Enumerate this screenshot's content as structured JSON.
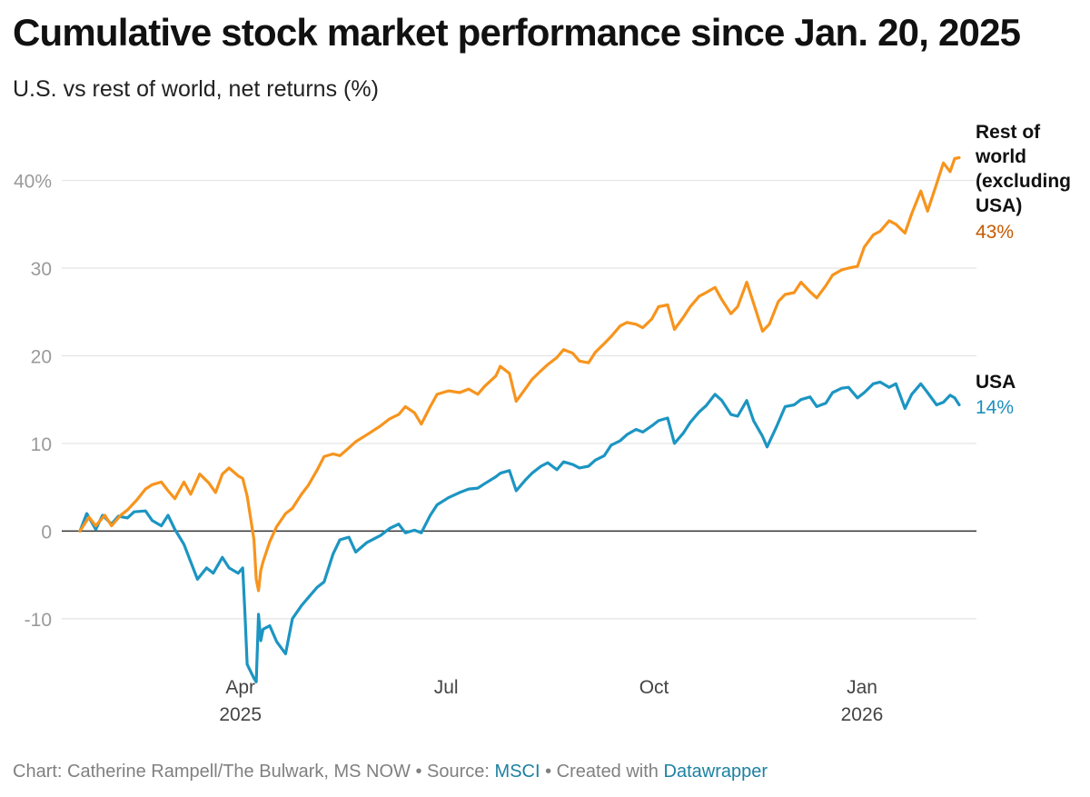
{
  "title": "Cumulative stock market performance since Jan. 20, 2025",
  "subtitle": "U.S. vs rest of world, net returns (%)",
  "footer": {
    "credit": "Chart: Catherine Rampell/The Bulwark, MS NOW",
    "sep1": " • ",
    "source_label": "Source: ",
    "source": "MSCI",
    "sep2": " • ",
    "created_label": "Created with ",
    "tool": "Datawrapper"
  },
  "colors": {
    "row": "#f7941d",
    "usa": "#1c95c2",
    "row_label": "#c45a00",
    "usa_label": "#1c8fbb",
    "link": "#1d81a2",
    "grid": "#e3e3e3",
    "tick": "#9a9a9a",
    "zero": "#333333"
  },
  "chart_data": {
    "type": "line",
    "title": "Cumulative stock market performance since Jan. 20, 2025",
    "subtitle": "U.S. vs rest of world, net returns (%)",
    "x_type": "date",
    "xlim": [
      "2025-01-20",
      "2026-02-13"
    ],
    "ylim": [
      -18,
      44
    ],
    "y_ticks": [
      {
        "value": 40,
        "label": "40%"
      },
      {
        "value": 30,
        "label": "30"
      },
      {
        "value": 20,
        "label": "20"
      },
      {
        "value": 10,
        "label": "10"
      },
      {
        "value": 0,
        "label": "0"
      },
      {
        "value": -10,
        "label": "-10"
      }
    ],
    "x_ticks": [
      {
        "date": "2025-04-01",
        "label": "Apr",
        "sublabel": "2025"
      },
      {
        "date": "2025-07-01",
        "label": "Jul",
        "sublabel": ""
      },
      {
        "date": "2025-10-01",
        "label": "Oct",
        "sublabel": ""
      },
      {
        "date": "2026-01-01",
        "label": "Jan",
        "sublabel": "2026"
      }
    ],
    "grid": "horizontal",
    "legend": "direct labels at line ends (right)",
    "series": [
      {
        "name": "Rest of world (excluding USA)",
        "label_lines": [
          "Rest of",
          "world",
          "(excluding",
          "USA)"
        ],
        "end_label": "43%",
        "color": "#f7941d",
        "points": [
          [
            "2025-01-20",
            0
          ],
          [
            "2025-01-24",
            1.6
          ],
          [
            "2025-01-27",
            0.6
          ],
          [
            "2025-01-31",
            1.8
          ],
          [
            "2025-02-03",
            0.6
          ],
          [
            "2025-02-07",
            1.8
          ],
          [
            "2025-02-10",
            2.4
          ],
          [
            "2025-02-14",
            3.5
          ],
          [
            "2025-02-18",
            4.8
          ],
          [
            "2025-02-21",
            5.3
          ],
          [
            "2025-02-25",
            5.6
          ],
          [
            "2025-02-28",
            4.6
          ],
          [
            "2025-03-03",
            3.7
          ],
          [
            "2025-03-07",
            5.6
          ],
          [
            "2025-03-10",
            4.2
          ],
          [
            "2025-03-14",
            6.5
          ],
          [
            "2025-03-18",
            5.5
          ],
          [
            "2025-03-21",
            4.4
          ],
          [
            "2025-03-24",
            6.5
          ],
          [
            "2025-03-27",
            7.2
          ],
          [
            "2025-03-31",
            6.3
          ],
          [
            "2025-04-02",
            6.0
          ],
          [
            "2025-04-04",
            4.0
          ],
          [
            "2025-04-07",
            -1.0
          ],
          [
            "2025-04-08",
            -5.5
          ],
          [
            "2025-04-09",
            -6.8
          ],
          [
            "2025-04-10",
            -4.5
          ],
          [
            "2025-04-11",
            -3.5
          ],
          [
            "2025-04-14",
            -1.2
          ],
          [
            "2025-04-17",
            0.5
          ],
          [
            "2025-04-21",
            2.0
          ],
          [
            "2025-04-24",
            2.6
          ],
          [
            "2025-04-28",
            4.2
          ],
          [
            "2025-05-01",
            5.2
          ],
          [
            "2025-05-05",
            7.0
          ],
          [
            "2025-05-08",
            8.5
          ],
          [
            "2025-05-12",
            8.8
          ],
          [
            "2025-05-15",
            8.6
          ],
          [
            "2025-05-19",
            9.5
          ],
          [
            "2025-05-22",
            10.2
          ],
          [
            "2025-05-27",
            11.0
          ],
          [
            "2025-06-02",
            12.0
          ],
          [
            "2025-06-06",
            12.8
          ],
          [
            "2025-06-10",
            13.3
          ],
          [
            "2025-06-13",
            14.2
          ],
          [
            "2025-06-17",
            13.5
          ],
          [
            "2025-06-20",
            12.2
          ],
          [
            "2025-06-24",
            14.2
          ],
          [
            "2025-06-27",
            15.6
          ],
          [
            "2025-07-02",
            16.0
          ],
          [
            "2025-07-07",
            15.8
          ],
          [
            "2025-07-11",
            16.2
          ],
          [
            "2025-07-15",
            15.6
          ],
          [
            "2025-07-18",
            16.5
          ],
          [
            "2025-07-23",
            17.7
          ],
          [
            "2025-07-25",
            18.8
          ],
          [
            "2025-07-29",
            18.0
          ],
          [
            "2025-08-01",
            14.8
          ],
          [
            "2025-08-05",
            16.2
          ],
          [
            "2025-08-08",
            17.3
          ],
          [
            "2025-08-12",
            18.3
          ],
          [
            "2025-08-15",
            19.0
          ],
          [
            "2025-08-19",
            19.8
          ],
          [
            "2025-08-22",
            20.7
          ],
          [
            "2025-08-26",
            20.3
          ],
          [
            "2025-08-29",
            19.4
          ],
          [
            "2025-09-02",
            19.2
          ],
          [
            "2025-09-05",
            20.4
          ],
          [
            "2025-09-09",
            21.4
          ],
          [
            "2025-09-12",
            22.2
          ],
          [
            "2025-09-16",
            23.4
          ],
          [
            "2025-09-19",
            23.8
          ],
          [
            "2025-09-23",
            23.6
          ],
          [
            "2025-09-26",
            23.2
          ],
          [
            "2025-09-30",
            24.2
          ],
          [
            "2025-10-03",
            25.6
          ],
          [
            "2025-10-07",
            25.8
          ],
          [
            "2025-10-10",
            23.0
          ],
          [
            "2025-10-14",
            24.4
          ],
          [
            "2025-10-17",
            25.6
          ],
          [
            "2025-10-21",
            26.8
          ],
          [
            "2025-10-24",
            27.2
          ],
          [
            "2025-10-28",
            27.8
          ],
          [
            "2025-10-31",
            26.4
          ],
          [
            "2025-11-04",
            24.8
          ],
          [
            "2025-11-07",
            25.6
          ],
          [
            "2025-11-11",
            28.4
          ],
          [
            "2025-11-14",
            26.0
          ],
          [
            "2025-11-18",
            22.8
          ],
          [
            "2025-11-21",
            23.6
          ],
          [
            "2025-11-25",
            26.2
          ],
          [
            "2025-11-28",
            27.0
          ],
          [
            "2025-12-02",
            27.2
          ],
          [
            "2025-12-05",
            28.4
          ],
          [
            "2025-12-09",
            27.3
          ],
          [
            "2025-12-12",
            26.6
          ],
          [
            "2025-12-16",
            28.0
          ],
          [
            "2025-12-19",
            29.2
          ],
          [
            "2025-12-23",
            29.8
          ],
          [
            "2025-12-26",
            30.0
          ],
          [
            "2025-12-30",
            30.2
          ],
          [
            "2026-01-02",
            32.4
          ],
          [
            "2026-01-06",
            33.8
          ],
          [
            "2026-01-09",
            34.2
          ],
          [
            "2026-01-13",
            35.4
          ],
          [
            "2026-01-16",
            35.0
          ],
          [
            "2026-01-20",
            34.0
          ],
          [
            "2026-01-23",
            36.2
          ],
          [
            "2026-01-27",
            38.8
          ],
          [
            "2026-01-30",
            36.5
          ],
          [
            "2026-02-03",
            39.6
          ],
          [
            "2026-02-06",
            42.0
          ],
          [
            "2026-02-09",
            41.0
          ],
          [
            "2026-02-11",
            42.5
          ],
          [
            "2026-02-13",
            42.6
          ]
        ]
      },
      {
        "name": "USA",
        "label_lines": [
          "USA"
        ],
        "end_label": "14%",
        "color": "#1c95c2",
        "points": [
          [
            "2025-01-20",
            0
          ],
          [
            "2025-01-23",
            2.0
          ],
          [
            "2025-01-27",
            0.2
          ],
          [
            "2025-01-30",
            1.8
          ],
          [
            "2025-02-03",
            0.8
          ],
          [
            "2025-02-06",
            1.7
          ],
          [
            "2025-02-10",
            1.5
          ],
          [
            "2025-02-13",
            2.2
          ],
          [
            "2025-02-18",
            2.3
          ],
          [
            "2025-02-21",
            1.2
          ],
          [
            "2025-02-25",
            0.6
          ],
          [
            "2025-02-28",
            1.8
          ],
          [
            "2025-03-03",
            0.2
          ],
          [
            "2025-03-07",
            -1.5
          ],
          [
            "2025-03-10",
            -3.5
          ],
          [
            "2025-03-13",
            -5.5
          ],
          [
            "2025-03-17",
            -4.2
          ],
          [
            "2025-03-20",
            -4.8
          ],
          [
            "2025-03-24",
            -3.0
          ],
          [
            "2025-03-27",
            -4.2
          ],
          [
            "2025-03-31",
            -4.8
          ],
          [
            "2025-04-02",
            -4.2
          ],
          [
            "2025-04-03",
            -9.5
          ],
          [
            "2025-04-04",
            -15.2
          ],
          [
            "2025-04-07",
            -16.8
          ],
          [
            "2025-04-08",
            -17.2
          ],
          [
            "2025-04-09",
            -9.5
          ],
          [
            "2025-04-10",
            -12.5
          ],
          [
            "2025-04-11",
            -11.2
          ],
          [
            "2025-04-14",
            -10.8
          ],
          [
            "2025-04-17",
            -12.6
          ],
          [
            "2025-04-21",
            -14.0
          ],
          [
            "2025-04-24",
            -10.0
          ],
          [
            "2025-04-28",
            -8.5
          ],
          [
            "2025-05-01",
            -7.6
          ],
          [
            "2025-05-05",
            -6.4
          ],
          [
            "2025-05-08",
            -5.8
          ],
          [
            "2025-05-12",
            -2.6
          ],
          [
            "2025-05-15",
            -1.0
          ],
          [
            "2025-05-19",
            -0.7
          ],
          [
            "2025-05-22",
            -2.4
          ],
          [
            "2025-05-27",
            -1.3
          ],
          [
            "2025-06-02",
            -0.5
          ],
          [
            "2025-06-06",
            0.3
          ],
          [
            "2025-06-10",
            0.8
          ],
          [
            "2025-06-13",
            -0.2
          ],
          [
            "2025-06-17",
            0.1
          ],
          [
            "2025-06-20",
            -0.2
          ],
          [
            "2025-06-24",
            1.8
          ],
          [
            "2025-06-27",
            3.0
          ],
          [
            "2025-07-02",
            3.8
          ],
          [
            "2025-07-07",
            4.4
          ],
          [
            "2025-07-11",
            4.8
          ],
          [
            "2025-07-15",
            4.9
          ],
          [
            "2025-07-18",
            5.4
          ],
          [
            "2025-07-23",
            6.2
          ],
          [
            "2025-07-25",
            6.6
          ],
          [
            "2025-07-29",
            6.9
          ],
          [
            "2025-08-01",
            4.6
          ],
          [
            "2025-08-05",
            5.8
          ],
          [
            "2025-08-08",
            6.6
          ],
          [
            "2025-08-12",
            7.4
          ],
          [
            "2025-08-15",
            7.8
          ],
          [
            "2025-08-19",
            7.0
          ],
          [
            "2025-08-22",
            7.9
          ],
          [
            "2025-08-26",
            7.6
          ],
          [
            "2025-08-29",
            7.2
          ],
          [
            "2025-09-02",
            7.4
          ],
          [
            "2025-09-05",
            8.1
          ],
          [
            "2025-09-09",
            8.6
          ],
          [
            "2025-09-12",
            9.8
          ],
          [
            "2025-09-16",
            10.3
          ],
          [
            "2025-09-19",
            11.0
          ],
          [
            "2025-09-23",
            11.6
          ],
          [
            "2025-09-26",
            11.3
          ],
          [
            "2025-09-30",
            12.0
          ],
          [
            "2025-10-03",
            12.6
          ],
          [
            "2025-10-07",
            12.9
          ],
          [
            "2025-10-10",
            10.0
          ],
          [
            "2025-10-14",
            11.2
          ],
          [
            "2025-10-17",
            12.4
          ],
          [
            "2025-10-21",
            13.6
          ],
          [
            "2025-10-24",
            14.3
          ],
          [
            "2025-10-28",
            15.6
          ],
          [
            "2025-10-31",
            14.9
          ],
          [
            "2025-11-04",
            13.3
          ],
          [
            "2025-11-07",
            13.1
          ],
          [
            "2025-11-11",
            14.9
          ],
          [
            "2025-11-14",
            12.6
          ],
          [
            "2025-11-18",
            10.8
          ],
          [
            "2025-11-20",
            9.6
          ],
          [
            "2025-11-24",
            11.8
          ],
          [
            "2025-11-28",
            14.2
          ],
          [
            "2025-12-02",
            14.4
          ],
          [
            "2025-12-05",
            15.0
          ],
          [
            "2025-12-09",
            15.3
          ],
          [
            "2025-12-12",
            14.2
          ],
          [
            "2025-12-16",
            14.6
          ],
          [
            "2025-12-19",
            15.8
          ],
          [
            "2025-12-23",
            16.3
          ],
          [
            "2025-12-26",
            16.4
          ],
          [
            "2025-12-30",
            15.2
          ],
          [
            "2026-01-02",
            15.8
          ],
          [
            "2026-01-06",
            16.8
          ],
          [
            "2026-01-09",
            17.0
          ],
          [
            "2026-01-13",
            16.4
          ],
          [
            "2026-01-16",
            16.8
          ],
          [
            "2026-01-20",
            14.0
          ],
          [
            "2026-01-23",
            15.6
          ],
          [
            "2026-01-27",
            16.8
          ],
          [
            "2026-01-30",
            15.8
          ],
          [
            "2026-02-03",
            14.4
          ],
          [
            "2026-02-06",
            14.7
          ],
          [
            "2026-02-09",
            15.5
          ],
          [
            "2026-02-11",
            15.2
          ],
          [
            "2026-02-13",
            14.4
          ]
        ]
      }
    ]
  }
}
